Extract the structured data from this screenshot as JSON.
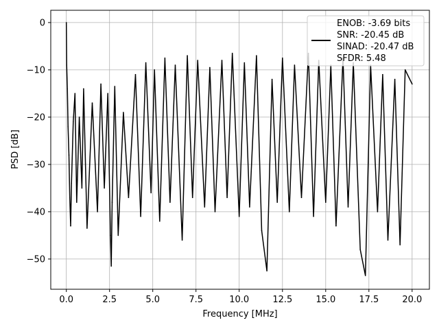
{
  "chart_data": {
    "type": "line",
    "title": "",
    "xlabel": "Frequency [MHz]",
    "ylabel": "PSD [dB]",
    "xlim": [
      -0.9,
      21.0
    ],
    "ylim": [
      -56.4,
      2.6
    ],
    "grid": true,
    "legend_position": "top-right",
    "xticks": [
      0.0,
      2.5,
      5.0,
      7.5,
      10.0,
      12.5,
      15.0,
      17.5,
      20.0
    ],
    "xtick_labels": [
      "0.0",
      "2.5",
      "5.0",
      "7.5",
      "10.0",
      "12.5",
      "15.0",
      "17.5",
      "20.0"
    ],
    "yticks": [
      0,
      -10,
      -20,
      -30,
      -40,
      -50
    ],
    "ytick_labels": [
      "0",
      "−10",
      "−20",
      "−30",
      "−40",
      "−50"
    ],
    "series": [
      {
        "color": "#000000",
        "description": "noise-like power spectral density over 0–20 MHz: spike to 0 dB at 0 MHz, dense fluctuation mostly between about -10 dB and -30 dB, upper envelope near -7 to -10 dB, deep dips reaching about -52 dB near 2.6 and 11.6 MHz and about -53.5 dB near 17.3 MHz",
        "x": [
          0.0,
          0.02,
          0.06,
          0.1,
          0.15,
          0.2,
          0.25,
          0.3,
          0.4,
          0.5,
          0.6,
          0.75,
          0.9,
          1.0,
          1.2,
          1.5,
          1.8,
          2.0,
          2.2,
          2.4,
          2.55,
          2.6,
          2.65,
          2.8,
          3.0,
          3.3,
          3.6,
          4.0,
          4.3,
          4.6,
          4.9,
          5.1,
          5.4,
          5.7,
          6.0,
          6.3,
          6.7,
          7.0,
          7.3,
          7.6,
          8.0,
          8.3,
          8.6,
          9.0,
          9.3,
          9.6,
          10.0,
          10.3,
          10.6,
          11.0,
          11.3,
          11.6,
          11.9,
          12.2,
          12.5,
          12.9,
          13.2,
          13.6,
          14.0,
          14.3,
          14.6,
          15.0,
          15.3,
          15.6,
          16.0,
          16.3,
          16.6,
          17.0,
          17.3,
          17.6,
          18.0,
          18.3,
          18.6,
          19.0,
          19.3,
          19.6,
          20.0
        ],
        "y": [
          0.0,
          -9.0,
          -14.0,
          -22.0,
          -28.0,
          -37.0,
          -43.0,
          -34.0,
          -21.0,
          -15.0,
          -38.0,
          -20.0,
          -35.0,
          -14.0,
          -43.5,
          -17.0,
          -40.0,
          -13.0,
          -35.0,
          -15.0,
          -45.0,
          -51.5,
          -38.0,
          -13.5,
          -45.0,
          -19.0,
          -37.0,
          -11.0,
          -41.0,
          -8.5,
          -36.0,
          -10.0,
          -42.0,
          -7.5,
          -38.0,
          -9.0,
          -46.0,
          -7.0,
          -37.0,
          -8.0,
          -39.0,
          -9.5,
          -40.0,
          -8.0,
          -37.0,
          -6.5,
          -41.0,
          -8.5,
          -39.0,
          -7.0,
          -44.0,
          -52.5,
          -12.0,
          -38.0,
          -7.5,
          -40.0,
          -9.0,
          -37.0,
          -6.5,
          -41.0,
          -8.0,
          -38.0,
          -9.0,
          -43.0,
          -7.5,
          -39.0,
          -8.5,
          -48.0,
          -53.5,
          -9.0,
          -40.0,
          -11.0,
          -46.0,
          -12.0,
          -47.0,
          -10.0,
          -13.0
        ]
      }
    ],
    "legend": {
      "entries": [
        "ENOB: -3.69 bits",
        "SNR: -20.45 dB",
        "SINAD: -20.47 dB",
        "SFDR: 5.48"
      ]
    }
  }
}
